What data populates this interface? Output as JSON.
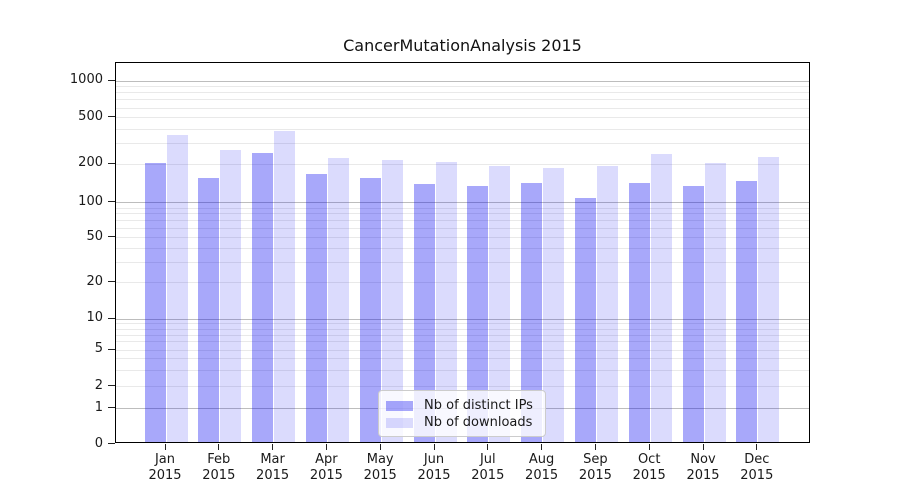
{
  "chart_data": {
    "type": "bar",
    "title": "CancerMutationAnalysis 2015",
    "categories": [
      "Jan",
      "Feb",
      "Mar",
      "Apr",
      "May",
      "Jun",
      "Jul",
      "Aug",
      "Sep",
      "Oct",
      "Nov",
      "Dec"
    ],
    "category_year": "2015",
    "series": [
      {
        "name": "Nb of distinct IPs",
        "color": "rgba(0,0,240,0.34)",
        "values": [
          195,
          150,
          238,
          160,
          148,
          135,
          130,
          136,
          104,
          137,
          129,
          142
        ]
      },
      {
        "name": "Nb of downloads",
        "color": "rgba(0,0,240,0.14)",
        "values": [
          340,
          253,
          365,
          217,
          209,
          198,
          187,
          180,
          186,
          234,
          196,
          221
        ]
      }
    ],
    "y_axis": {
      "scale": "symlog",
      "tick_labels": [
        "0",
        "1",
        "2",
        "5",
        "10",
        "20",
        "50",
        "100",
        "200",
        "500",
        "1000"
      ],
      "tick_values": [
        0,
        1,
        2,
        5,
        10,
        20,
        50,
        100,
        200,
        500,
        1000
      ],
      "major_tick_values": [
        1,
        10,
        100,
        1000
      ],
      "ylim": [
        0,
        1400
      ]
    },
    "legend": {
      "position": "lower-center",
      "entries": [
        "Nb of distinct IPs",
        "Nb of downloads"
      ]
    },
    "grid": true,
    "colors": {
      "grid_major": "#bdbdbd",
      "grid_minor": "#e9e9e9",
      "spine": "#000000",
      "background": "#ffffff"
    }
  }
}
